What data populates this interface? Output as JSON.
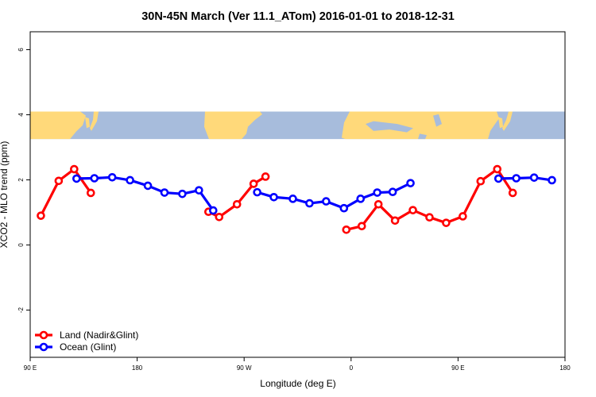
{
  "chart_data": {
    "type": "line",
    "title": "30N-45N March (Ver 11.1_ATom)   2016-01-01 to 2018-12-31",
    "xlabel": "Longitude (deg E)",
    "ylabel": "XCO2 - MLO trend (ppm)",
    "xlim": [
      90,
      540
    ],
    "ylim": [
      -3.45,
      6.55
    ],
    "x_ticks": [
      {
        "value": 90,
        "label": "90 E"
      },
      {
        "value": 180,
        "label": "180"
      },
      {
        "value": 270,
        "label": "90 W"
      },
      {
        "value": 360,
        "label": "0"
      },
      {
        "value": 450,
        "label": "90 E"
      },
      {
        "value": 540,
        "label": "180"
      }
    ],
    "y_ticks": [
      {
        "value": -2,
        "label": "-2"
      },
      {
        "value": 0,
        "label": "0"
      },
      {
        "value": 2,
        "label": "2"
      },
      {
        "value": 4,
        "label": "4"
      },
      {
        "value": 6,
        "label": "6"
      }
    ],
    "map_strip": {
      "y_bottom": 3.25,
      "y_top": 4.1,
      "ocean_color": "#a7bcdc",
      "land_color": "#ffd97a"
    },
    "legend_position": "bottom-left",
    "series": [
      {
        "name": "Land (Nadir&Glint)",
        "color": "#ff0000",
        "segments": [
          [
            [
              99,
              0.9
            ],
            [
              114,
              1.97
            ],
            [
              127,
              2.33
            ],
            [
              141,
              1.6
            ]
          ],
          [
            [
              240,
              1.02
            ],
            [
              249,
              0.86
            ],
            [
              264,
              1.25
            ],
            [
              278,
              1.88
            ],
            [
              288,
              2.1
            ]
          ],
          [
            [
              356,
              0.47
            ],
            [
              369,
              0.58
            ],
            [
              383,
              1.25
            ],
            [
              397,
              0.75
            ],
            [
              412,
              1.07
            ],
            [
              426,
              0.85
            ],
            [
              440,
              0.68
            ],
            [
              454,
              0.88
            ],
            [
              469,
              1.96
            ],
            [
              483,
              2.33
            ],
            [
              496,
              1.6
            ]
          ]
        ]
      },
      {
        "name": "Ocean (Glint)",
        "color": "#0000ff",
        "segments": [
          [
            [
              129,
              2.04
            ],
            [
              144,
              2.05
            ],
            [
              159,
              2.08
            ],
            [
              174,
              1.99
            ],
            [
              189,
              1.82
            ],
            [
              203,
              1.61
            ],
            [
              218,
              1.57
            ],
            [
              232,
              1.68
            ],
            [
              244,
              1.06
            ]
          ],
          [
            [
              281,
              1.62
            ],
            [
              295,
              1.47
            ],
            [
              311,
              1.42
            ],
            [
              325,
              1.28
            ],
            [
              339,
              1.34
            ],
            [
              354,
              1.13
            ],
            [
              368,
              1.42
            ],
            [
              382,
              1.61
            ],
            [
              395,
              1.63
            ],
            [
              410,
              1.9
            ]
          ],
          [
            [
              484,
              2.04
            ],
            [
              499,
              2.05
            ],
            [
              514,
              2.07
            ],
            [
              529,
              1.99
            ]
          ]
        ]
      }
    ]
  }
}
